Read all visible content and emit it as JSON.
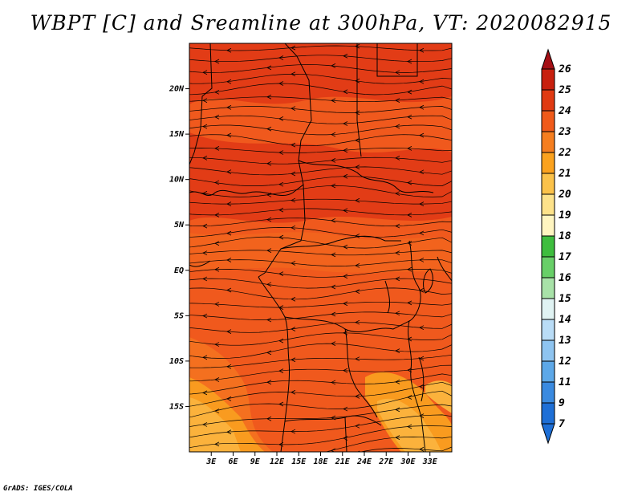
{
  "title": "WBPT [C] and Sreamline at 300hPa, VT: 2020082915",
  "footer": "GrADS: IGES/COLA",
  "map": {
    "lon_range": [
      0,
      36
    ],
    "lat_range": [
      -20,
      25
    ],
    "lat_ticks": [
      {
        "value": 20,
        "label": "20N"
      },
      {
        "value": 15,
        "label": "15N"
      },
      {
        "value": 10,
        "label": "10N"
      },
      {
        "value": 5,
        "label": "5N"
      },
      {
        "value": 0,
        "label": "EQ"
      },
      {
        "value": -5,
        "label": "5S"
      },
      {
        "value": -10,
        "label": "10S"
      },
      {
        "value": -15,
        "label": "15S"
      }
    ],
    "lon_ticks": [
      {
        "value": 3,
        "label": "3E"
      },
      {
        "value": 6,
        "label": "6E"
      },
      {
        "value": 9,
        "label": "9E"
      },
      {
        "value": 12,
        "label": "12E"
      },
      {
        "value": 15,
        "label": "15E"
      },
      {
        "value": 18,
        "label": "18E"
      },
      {
        "value": 21,
        "label": "21E"
      },
      {
        "value": 24,
        "label": "24E"
      },
      {
        "value": 27,
        "label": "27E"
      },
      {
        "value": 30,
        "label": "30E"
      },
      {
        "value": 33,
        "label": "33E"
      }
    ]
  },
  "colorbar": {
    "labels": [
      "26",
      "25",
      "24",
      "23",
      "22",
      "21",
      "20",
      "19",
      "18",
      "17",
      "16",
      "15",
      "14",
      "13",
      "12",
      "11",
      "9",
      "7"
    ],
    "colors": [
      "#a50f15",
      "#c8200e",
      "#e03a12",
      "#f05a1a",
      "#f57e1f",
      "#fba21e",
      "#fbc24a",
      "#fde28a",
      "#fff5c0",
      "#3ebd3e",
      "#68cf68",
      "#a8e2a8",
      "#e0f3f3",
      "#b9dcf6",
      "#8ec4f0",
      "#5da8e8",
      "#3a8ae0",
      "#1e6fd6"
    ]
  },
  "field_colors": {
    "main": "#f0591d",
    "hot": "#e23c16",
    "warm": "#f4701f",
    "cool": "#f99b1f",
    "light": "#fbb23c",
    "line": "#000000"
  }
}
